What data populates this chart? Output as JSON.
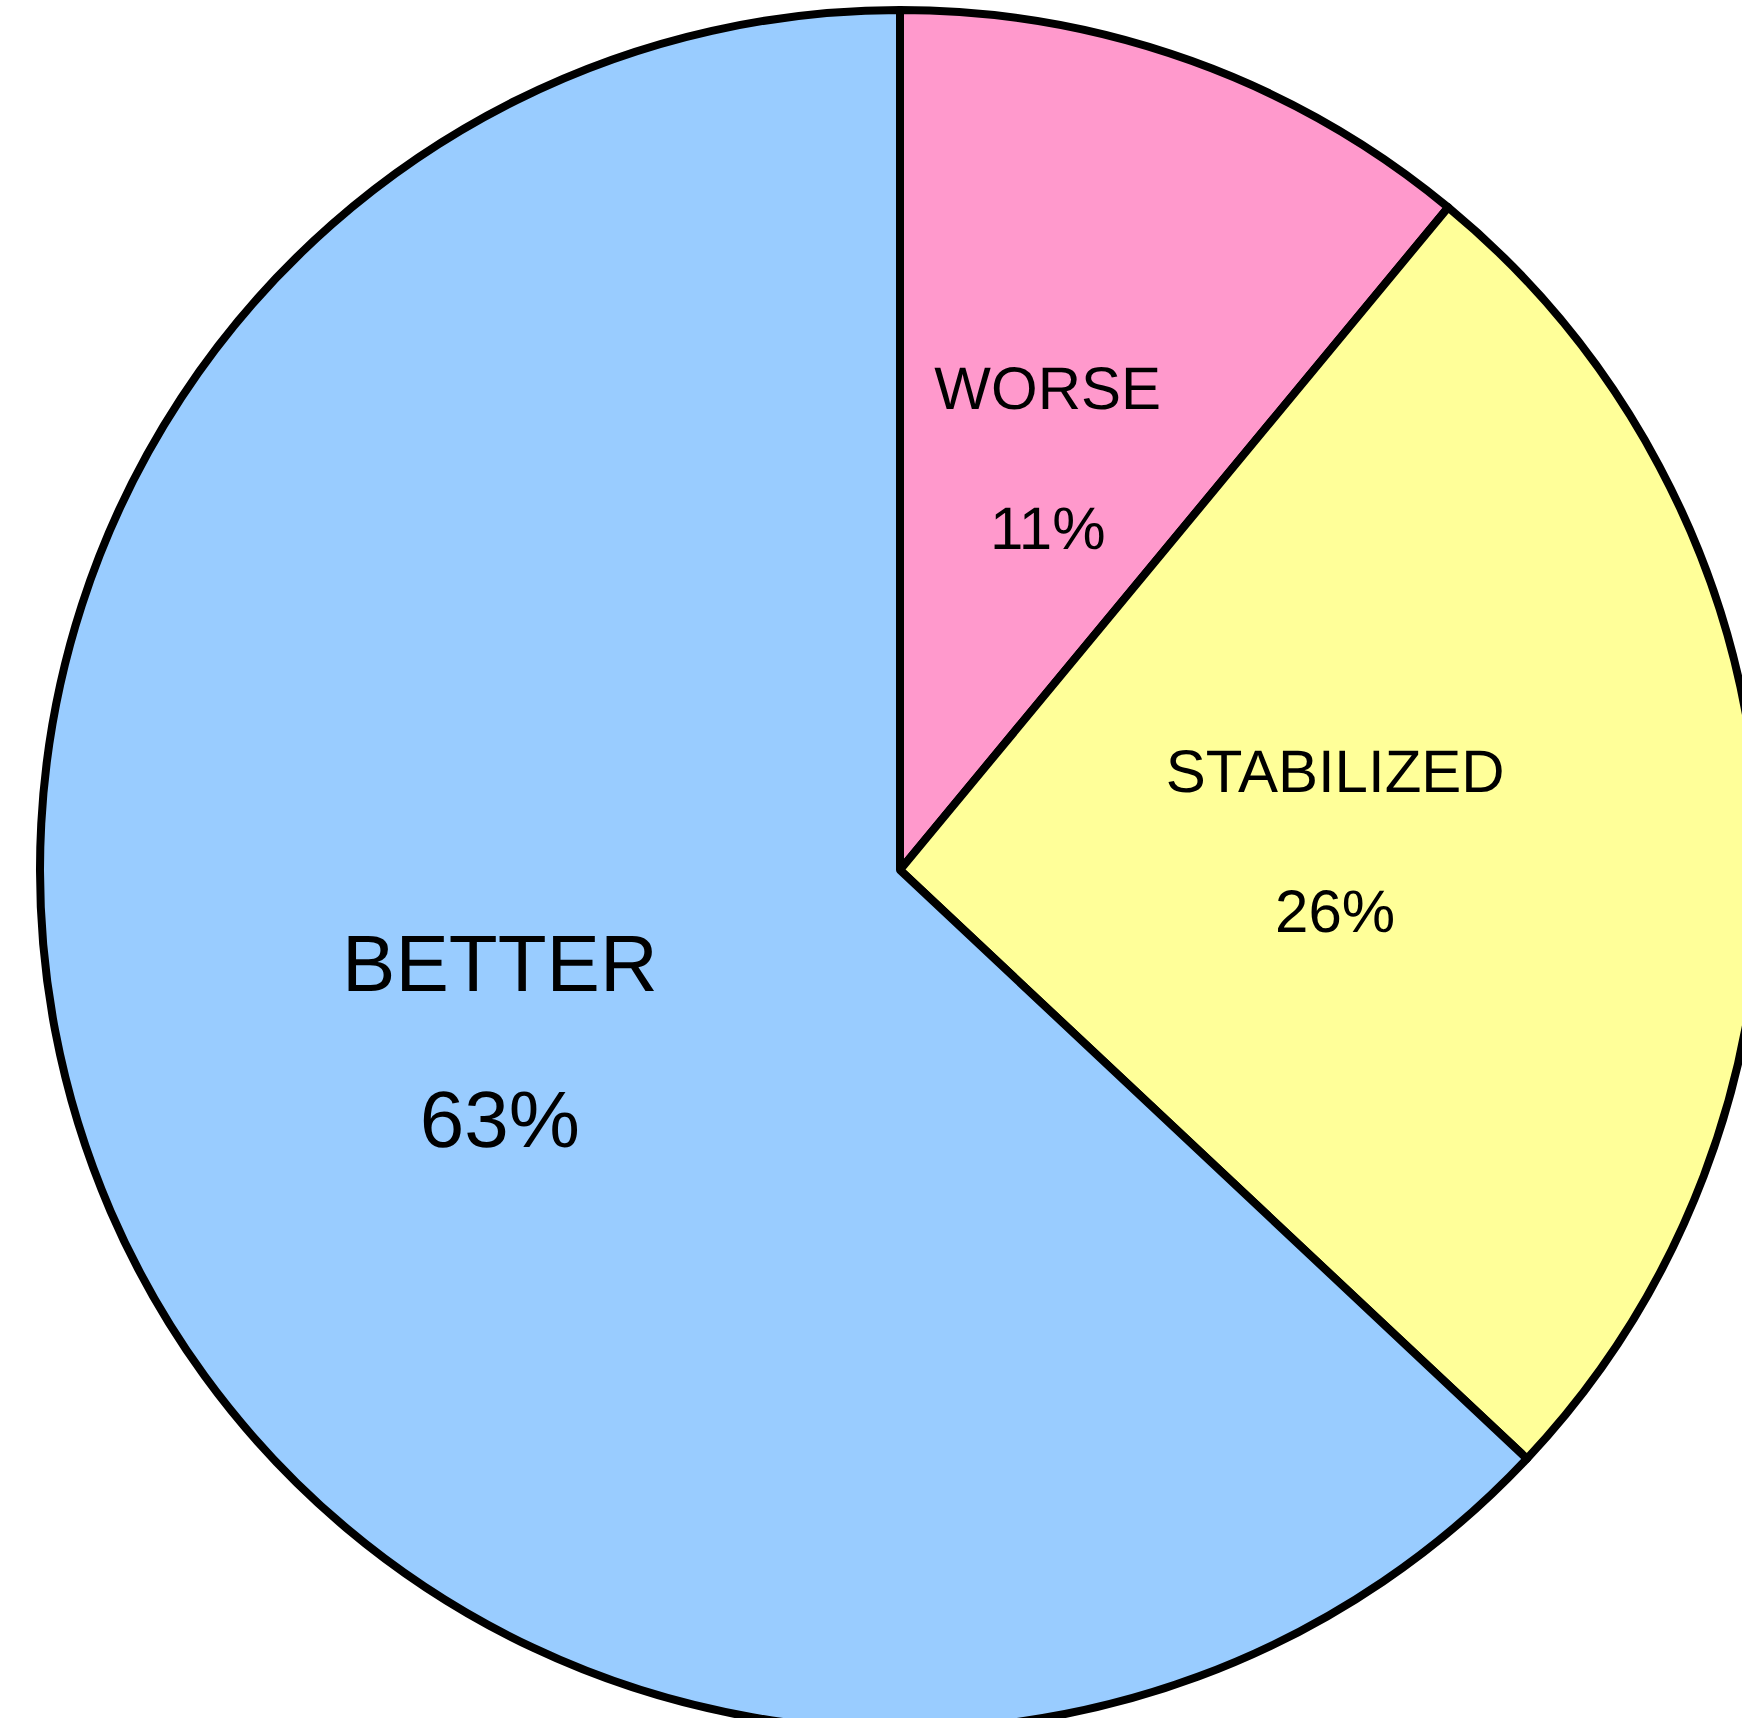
{
  "chart_data": {
    "type": "pie",
    "categories": [
      "WORSE",
      "STABILIZED",
      "BETTER"
    ],
    "values": [
      11,
      26,
      63
    ],
    "colors": [
      "#ff99cc",
      "#ffff99",
      "#99ccff"
    ],
    "value_labels": [
      "11%",
      "26%",
      "63%"
    ],
    "legend": false
  }
}
